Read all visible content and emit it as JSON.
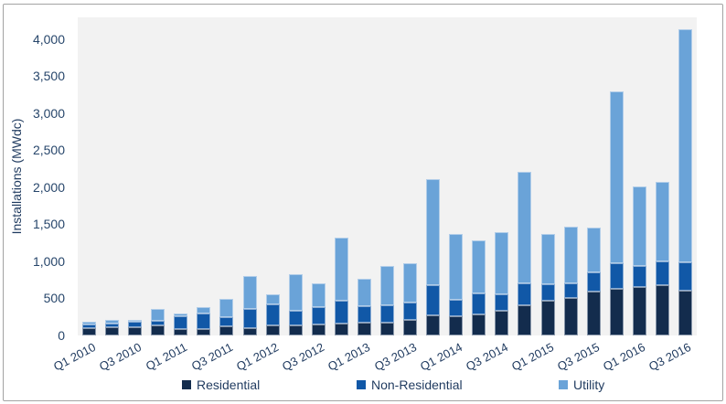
{
  "chart_data": {
    "type": "bar",
    "stacked": true,
    "title": "",
    "ylabel": "Installations (MWdc)",
    "xlabel": "",
    "units": "MWdc",
    "categories": [
      "Q1 2010",
      "Q2 2010",
      "Q3 2010",
      "Q4 2010",
      "Q1 2011",
      "Q2 2011",
      "Q3 2011",
      "Q4 2011",
      "Q1 2012",
      "Q2 2012",
      "Q3 2012",
      "Q4 2012",
      "Q1 2013",
      "Q2 2013",
      "Q3 2013",
      "Q4 2013",
      "Q1 2014",
      "Q2 2014",
      "Q3 2014",
      "Q4 2014",
      "Q1 2015",
      "Q2 2015",
      "Q3 2015",
      "Q4 2015",
      "Q1 2016",
      "Q2 2016",
      "Q3 2016"
    ],
    "x_tick_labels_shown": [
      "Q1 2010",
      "Q3 2010",
      "Q1 2011",
      "Q3 2011",
      "Q1 2012",
      "Q3 2012",
      "Q1 2013",
      "Q3 2013",
      "Q1 2014",
      "Q3 2014",
      "Q1 2015",
      "Q3 2015",
      "Q1 2016",
      "Q3 2016"
    ],
    "series": [
      {
        "name": "Residential",
        "color": "#132c4d",
        "values": [
          100,
          110,
          115,
          135,
          90,
          90,
          120,
          105,
          130,
          140,
          150,
          160,
          170,
          175,
          210,
          270,
          255,
          290,
          330,
          405,
          465,
          505,
          590,
          630,
          655,
          675,
          600
        ]
      },
      {
        "name": "Non-Residential",
        "color": "#1158a7",
        "values": [
          45,
          50,
          65,
          60,
          165,
          205,
          125,
          250,
          295,
          190,
          230,
          305,
          225,
          235,
          230,
          405,
          230,
          280,
          230,
          295,
          225,
          205,
          265,
          340,
          280,
          330,
          390
        ]
      },
      {
        "name": "Utility",
        "color": "#6aa3d8",
        "values": [
          35,
          50,
          35,
          165,
          45,
          85,
          245,
          445,
          130,
          500,
          330,
          860,
          365,
          530,
          530,
          1440,
          885,
          720,
          835,
          1505,
          685,
          755,
          600,
          2330,
          1075,
          1070,
          3145
        ]
      }
    ],
    "totals": [
      180,
      210,
      215,
      360,
      300,
      380,
      490,
      800,
      555,
      830,
      710,
      1325,
      760,
      940,
      970,
      2115,
      1370,
      1290,
      1395,
      2205,
      1375,
      1465,
      1455,
      3300,
      2010,
      2075,
      4135
    ],
    "ylim": [
      0,
      4296
    ],
    "yticks": [
      0,
      500,
      1000,
      1500,
      2000,
      2500,
      3000,
      3500,
      4000
    ],
    "grid": false,
    "legend_position": "bottom",
    "plot_bg": "#f2f2f2",
    "text_color": "#1f3a5f"
  }
}
